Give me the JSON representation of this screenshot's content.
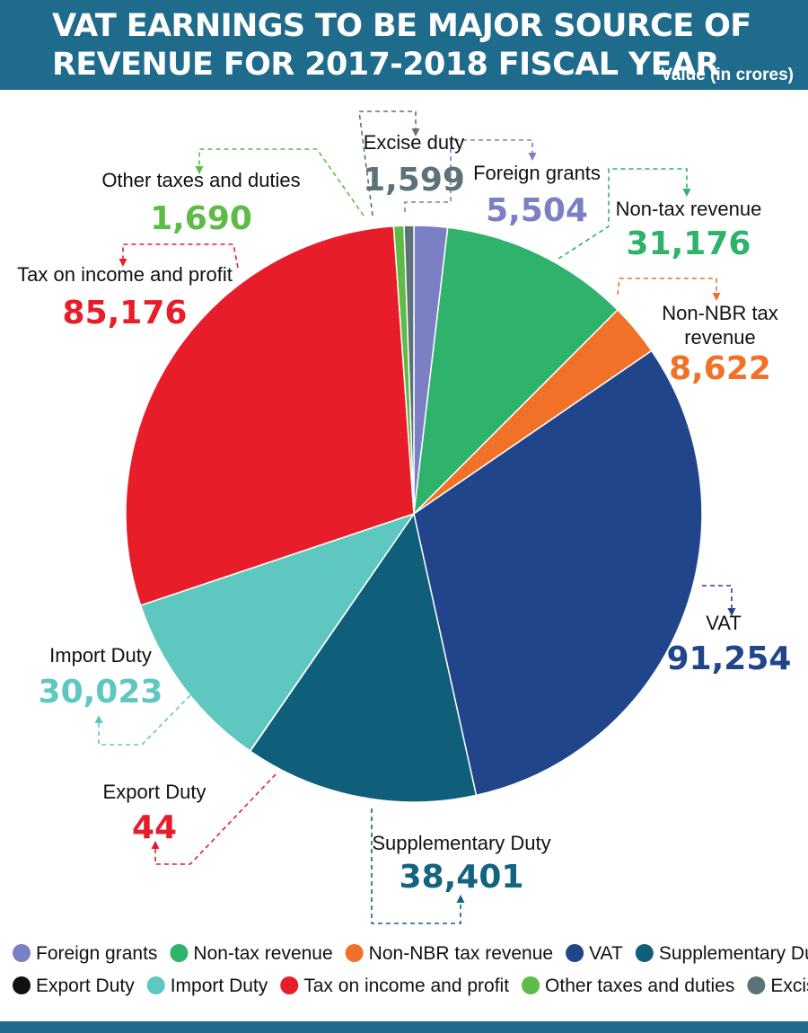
{
  "header": {
    "title_line1": "VAT EARNINGS TO BE MAJOR SOURCE OF",
    "title_line2": "REVENUE FOR 2017-2018 FISCAL YEAR",
    "units": "Value (in crores)"
  },
  "colors": {
    "header_bar": "#1e6b8c"
  },
  "chart_data": {
    "type": "pie",
    "title": "VAT EARNINGS TO BE MAJOR SOURCE OF REVENUE FOR 2017-2018 FISCAL YEAR",
    "units": "Value (in crores)",
    "slices": [
      {
        "name": "Foreign grants",
        "value": 5504,
        "value_label": "5,504",
        "color": "#7b7fc4",
        "label_color": "#7b7fc4"
      },
      {
        "name": "Non-tax revenue",
        "value": 31176,
        "value_label": "31,176",
        "color": "#2eb26c",
        "label_color": "#2eb26c"
      },
      {
        "name": "Non-NBR tax revenue",
        "value": 8622,
        "value_label": "8,622",
        "color": "#f07127",
        "label_color": "#f07127"
      },
      {
        "name": "VAT",
        "value": 91254,
        "value_label": "91,254",
        "color": "#21458a",
        "label_color": "#21458a"
      },
      {
        "name": "Supplementary Duty",
        "value": 38401,
        "value_label": "38,401",
        "color": "#0f5f7b",
        "label_color": "#14637f"
      },
      {
        "name": "Export Duty",
        "value": 44,
        "value_label": "44",
        "color": "#111111",
        "label_color": "#e41d2b"
      },
      {
        "name": "Import Duty",
        "value": 30023,
        "value_label": "30,023",
        "color": "#5ec8c0",
        "label_color": "#5ec8c0"
      },
      {
        "name": "Tax on income and profit",
        "value": 85176,
        "value_label": "85,176",
        "color": "#e81d2a",
        "label_color": "#e81d2a"
      },
      {
        "name": "Other taxes and duties",
        "value": 1690,
        "value_label": "1,690",
        "color": "#5dbb46",
        "label_color": "#5dbb46"
      },
      {
        "name": "Excise duty",
        "value": 1599,
        "value_label": "1,599",
        "color": "#5c7278",
        "label_color": "#5c7278"
      }
    ],
    "legend": {
      "position": "bottom",
      "rows": [
        [
          "Foreign grants",
          "Non-tax revenue",
          "Non-NBR tax revenue",
          "VAT",
          "Supplementary Duty"
        ],
        [
          "Export Duty",
          "Import Duty",
          "Tax on income and profit",
          "Other taxes and duties",
          "Excise duty"
        ]
      ]
    }
  }
}
